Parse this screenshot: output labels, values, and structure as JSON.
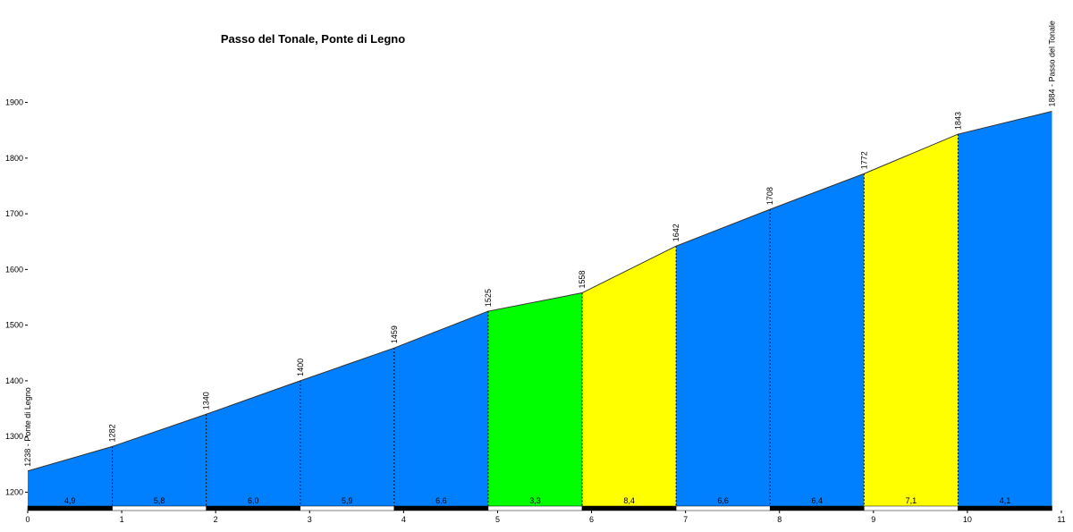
{
  "chart_data": {
    "type": "profile",
    "title": "Passo del Tonale, Ponte di Legno",
    "x": [
      0,
      0.9,
      1.9,
      2.9,
      3.9,
      4.9,
      5.9,
      6.9,
      7.9,
      8.9,
      9.9,
      10.9
    ],
    "values": [
      1238,
      1282,
      1340,
      1400,
      1459,
      1525,
      1558,
      1642,
      1708,
      1772,
      1843,
      1884
    ],
    "value_labels": [
      "1238 - Ponte di Legno",
      "1282",
      "1340",
      "1400",
      "1459",
      "1525",
      "1558",
      "1642",
      "1708",
      "1772",
      "1843",
      "1884 - Passo del Tonale"
    ],
    "gradients": [
      4.9,
      5.8,
      6.0,
      5.9,
      6.6,
      3.3,
      8.4,
      6.6,
      6.4,
      7.1,
      4.1
    ],
    "gradient_labels": [
      "4,9",
      "5,8",
      "6,0",
      "5,9",
      "6,6",
      "3,3",
      "8,4",
      "6,6",
      "6,4",
      "7,1",
      "4,1"
    ],
    "segment_colors": [
      "#0080ff",
      "#0080ff",
      "#0080ff",
      "#0080ff",
      "#0080ff",
      "#00ff00",
      "#ffff00",
      "#0080ff",
      "#0080ff",
      "#ffff00",
      "#0080ff"
    ],
    "xlim": [
      0,
      11
    ],
    "xticks": [
      0,
      1,
      2,
      3,
      4,
      5,
      6,
      7,
      8,
      9,
      10,
      11
    ],
    "ylim": [
      1175,
      1925
    ],
    "yticks": [
      1200,
      1300,
      1400,
      1500,
      1600,
      1700,
      1800,
      1900
    ]
  }
}
